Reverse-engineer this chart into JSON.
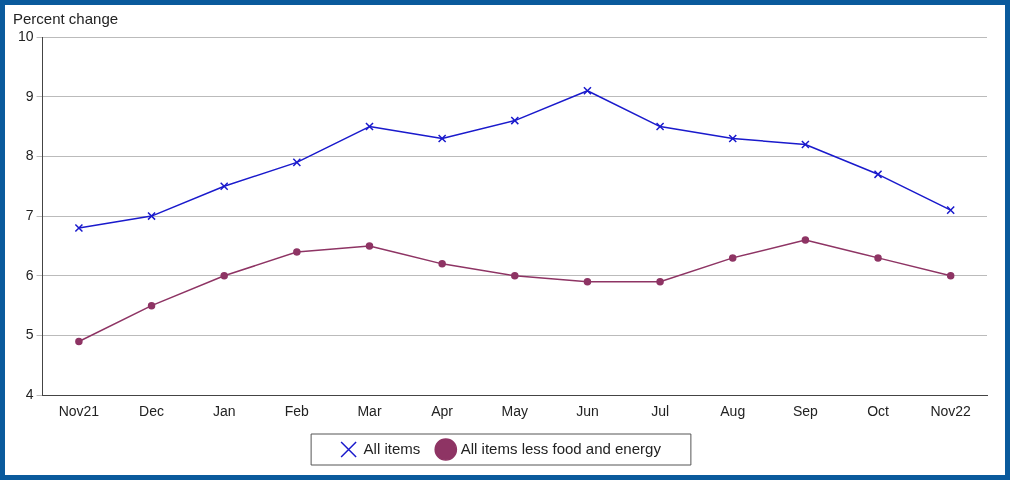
{
  "chart_data": {
    "type": "line",
    "ylabel": "Percent change",
    "categories": [
      "Nov21",
      "Dec",
      "Jan",
      "Feb",
      "Mar",
      "Apr",
      "May",
      "Jun",
      "Jul",
      "Aug",
      "Sep",
      "Oct",
      "Nov22"
    ],
    "series": [
      {
        "name": "All items",
        "color": "#1a1acc",
        "marker": "cross",
        "values": [
          6.8,
          7.0,
          7.5,
          7.9,
          8.5,
          8.3,
          8.6,
          9.1,
          8.5,
          8.3,
          8.2,
          7.7,
          7.1
        ]
      },
      {
        "name": "All items less food and energy",
        "color": "#8e3464",
        "marker": "circle",
        "values": [
          4.9,
          5.5,
          6.0,
          6.4,
          6.5,
          6.2,
          6.0,
          5.9,
          5.9,
          6.3,
          6.6,
          6.3,
          6.0
        ]
      }
    ],
    "ylim": [
      4,
      10
    ],
    "yticks": [
      4,
      5,
      6,
      7,
      8,
      9,
      10
    ],
    "grid": "y",
    "legend": "bottom",
    "line_style": "solid"
  }
}
